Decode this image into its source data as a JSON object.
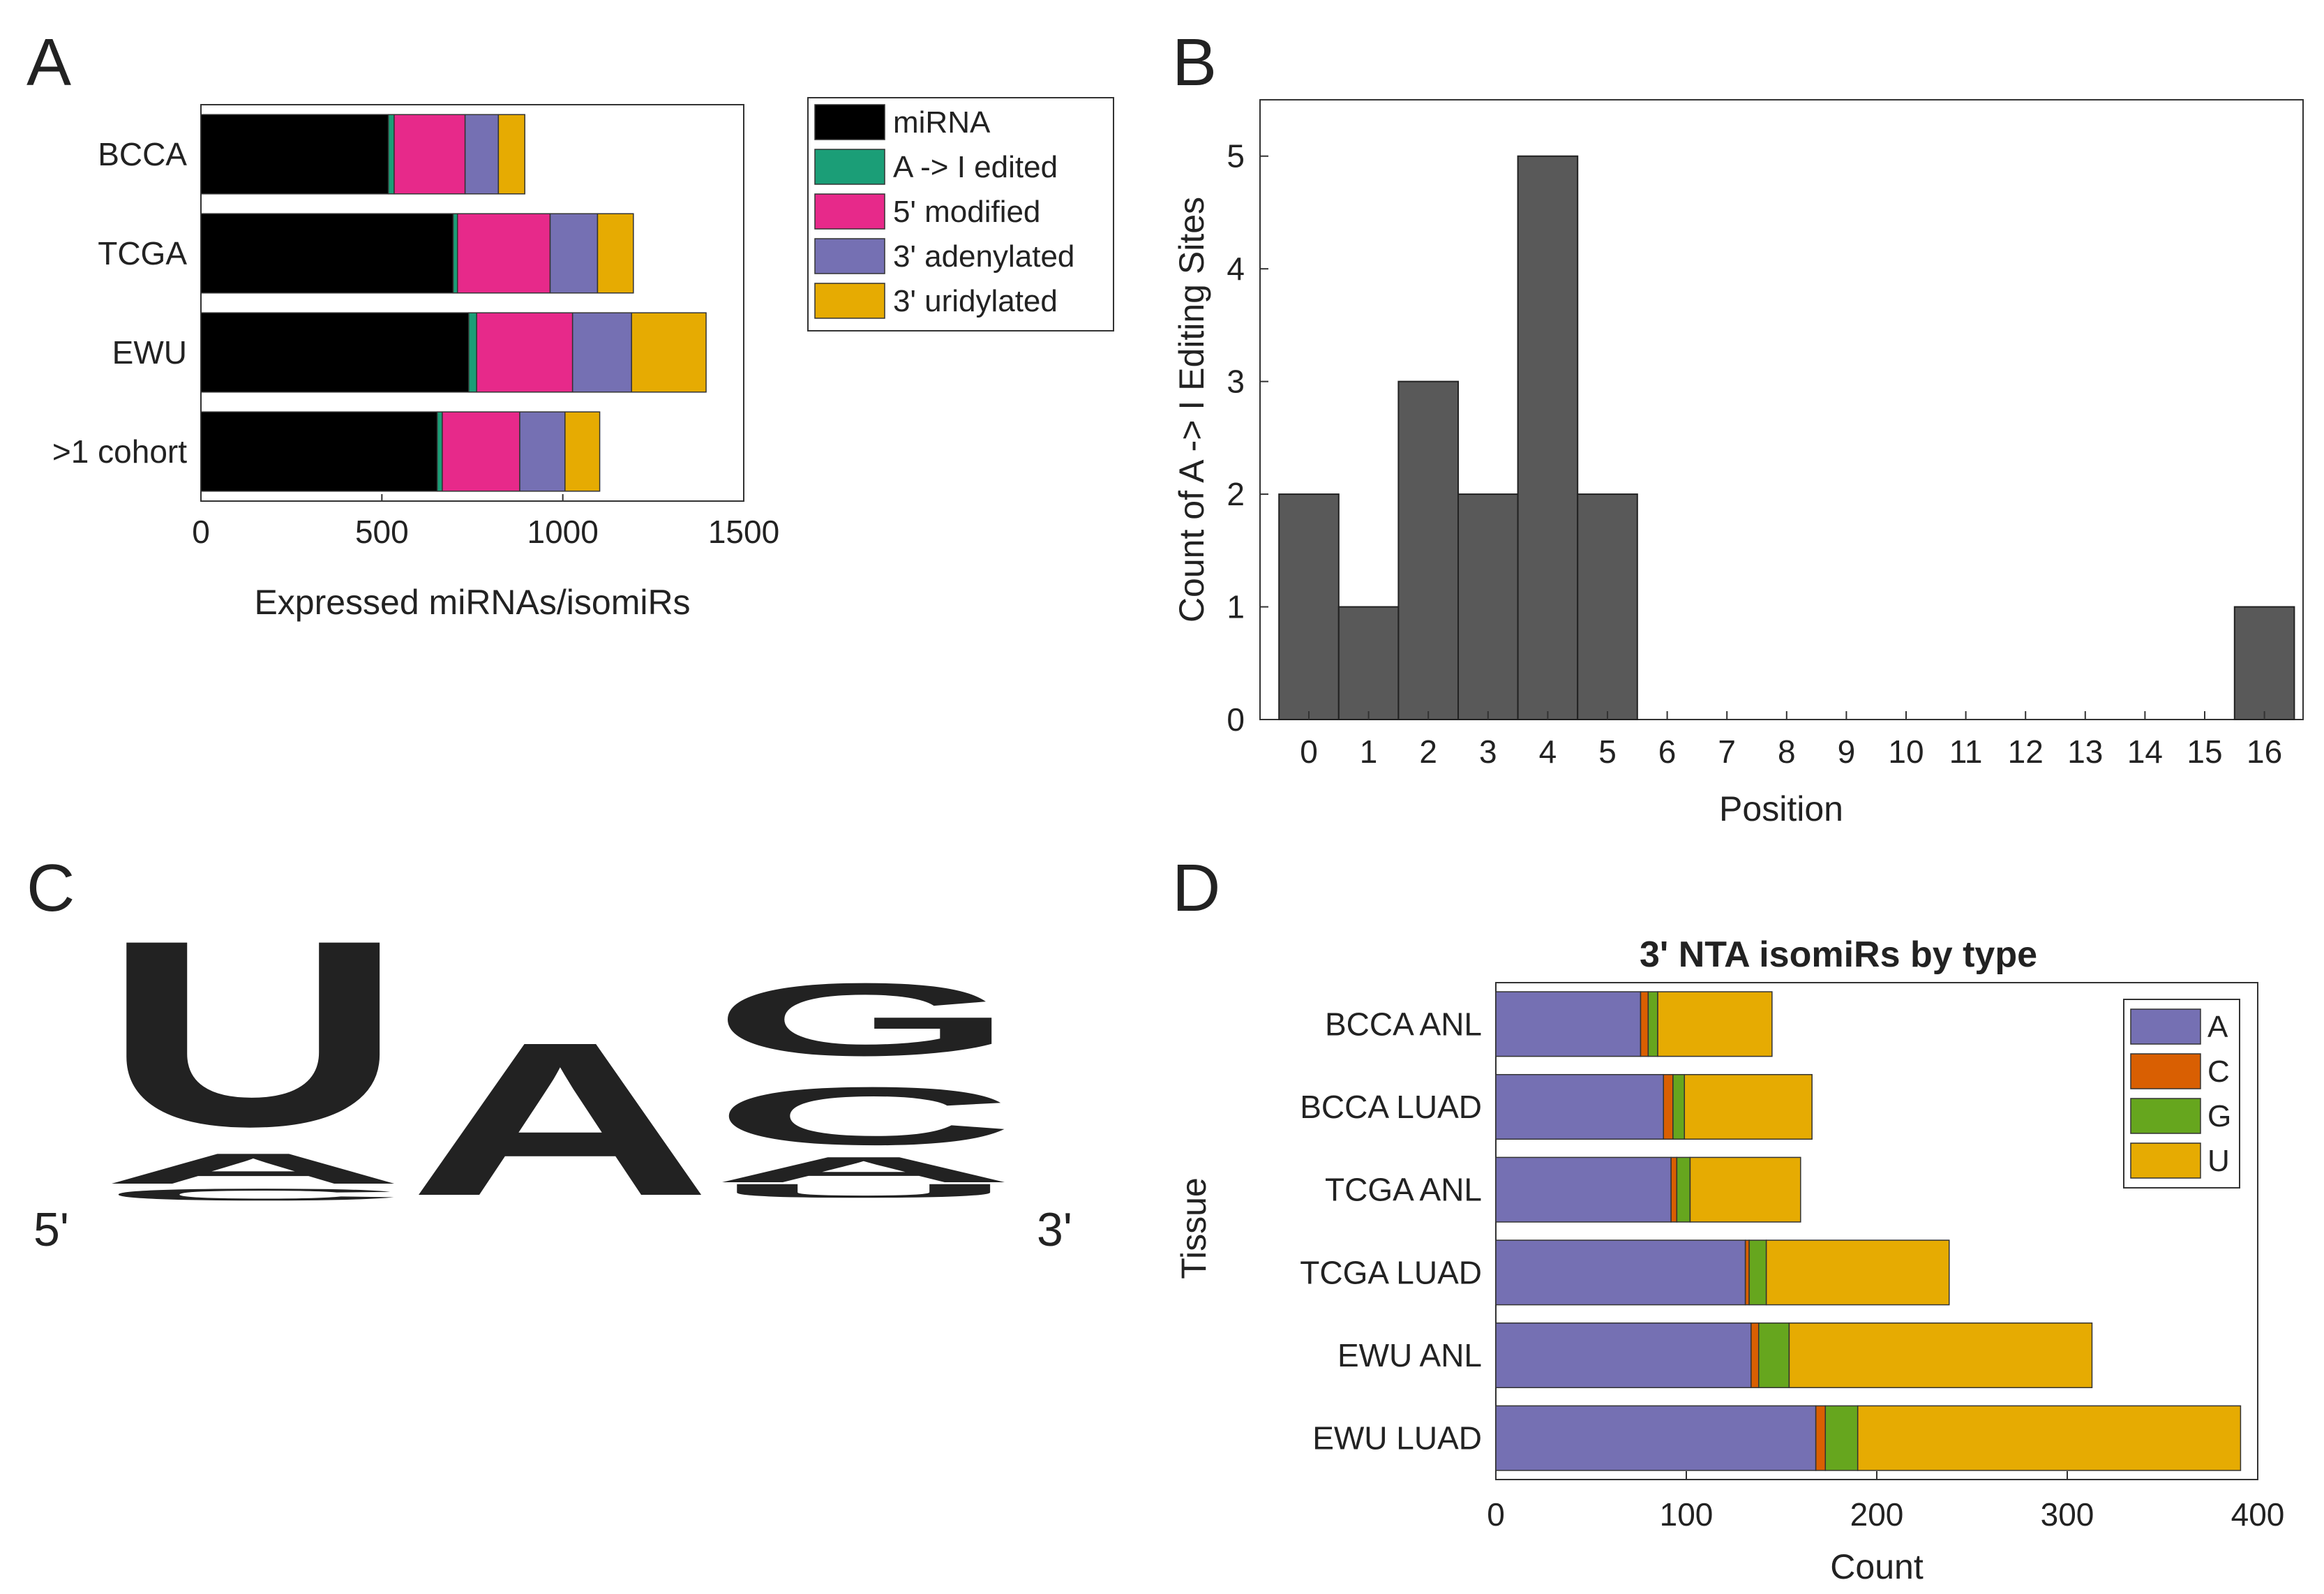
{
  "panels": [
    "A",
    "B",
    "C",
    "D"
  ],
  "chart_data": [
    {
      "id": "A",
      "type": "bar",
      "orientation": "horizontal",
      "stacked": true,
      "categories": [
        "BCCA",
        "TCGA",
        "EWU",
        ">1 cohort"
      ],
      "series": [
        {
          "name": "miRNA",
          "color": "#000000",
          "values": [
            518,
            697,
            740,
            653
          ]
        },
        {
          "name": "A -> I edited",
          "color": "#1b9e77",
          "values": [
            16,
            12,
            22,
            14
          ]
        },
        {
          "name": "5' modified",
          "color": "#e7298a",
          "values": [
            196,
            256,
            265,
            214
          ]
        },
        {
          "name": "3' adenylated",
          "color": "#7570b3",
          "values": [
            92,
            131,
            163,
            125
          ]
        },
        {
          "name": "3' uridylated",
          "color": "#e6ab02",
          "values": [
            73,
            99,
            206,
            96
          ]
        }
      ],
      "xlabel": "Expressed miRNAs/isomiRs",
      "xlim": [
        0,
        1500
      ],
      "xticks": [
        "0",
        "500",
        "1000",
        "1500"
      ],
      "legend": "outside-right"
    },
    {
      "id": "B",
      "type": "bar",
      "categories": [
        "0",
        "1",
        "2",
        "3",
        "4",
        "5",
        "6",
        "7",
        "8",
        "9",
        "10",
        "11",
        "12",
        "13",
        "14",
        "15",
        "16"
      ],
      "values": [
        2,
        1,
        3,
        2,
        5,
        2,
        0,
        0,
        0,
        0,
        0,
        0,
        0,
        0,
        0,
        0,
        1
      ],
      "color": "#595959",
      "xlabel": "Position",
      "ylabel": "Count of A -> I Editing Sites",
      "ylim": [
        0,
        5.5
      ],
      "yticks": [
        "0",
        "1",
        "2",
        "3",
        "4",
        "5"
      ]
    },
    {
      "id": "D",
      "type": "bar",
      "orientation": "horizontal",
      "stacked": true,
      "title": "3' NTA isomiRs by type",
      "categories": [
        "BCCA ANL",
        "BCCA LUAD",
        "TCGA ANL",
        "TCGA LUAD",
        "EWU ANL",
        "EWU LUAD"
      ],
      "series": [
        {
          "name": "A",
          "color": "#7570b3",
          "values": [
            76,
            88,
            92,
            131,
            134,
            168
          ]
        },
        {
          "name": "C",
          "color": "#d95f02",
          "values": [
            4,
            5,
            3,
            2,
            4,
            5
          ]
        },
        {
          "name": "G",
          "color": "#66a61e",
          "values": [
            5,
            6,
            7,
            9,
            16,
            17
          ]
        },
        {
          "name": "U",
          "color": "#e6ab02",
          "values": [
            60,
            67,
            58,
            96,
            159,
            201
          ]
        }
      ],
      "xlabel": "Count",
      "ylabel": "Tissue",
      "xlim": [
        0,
        400
      ],
      "xticks": [
        "0",
        "100",
        "200",
        "300",
        "400"
      ],
      "legend": "top-right"
    }
  ],
  "logo": {
    "five_prime": "5'",
    "three_prime": "3'",
    "positions": [
      {
        "letters": [
          {
            "base": "U",
            "color": "#e6ab02"
          },
          {
            "base": "A",
            "color": "#7570b3"
          },
          {
            "base": "C",
            "color": "#d95f02"
          }
        ]
      },
      {
        "letters": [
          {
            "base": "A",
            "color": "#7570b3"
          }
        ]
      },
      {
        "letters": [
          {
            "base": "G",
            "color": "#66a61e"
          },
          {
            "base": "C",
            "color": "#d95f02"
          },
          {
            "base": "A",
            "color": "#7570b3"
          },
          {
            "base": "U",
            "color": "#e6ab02"
          }
        ]
      }
    ]
  }
}
